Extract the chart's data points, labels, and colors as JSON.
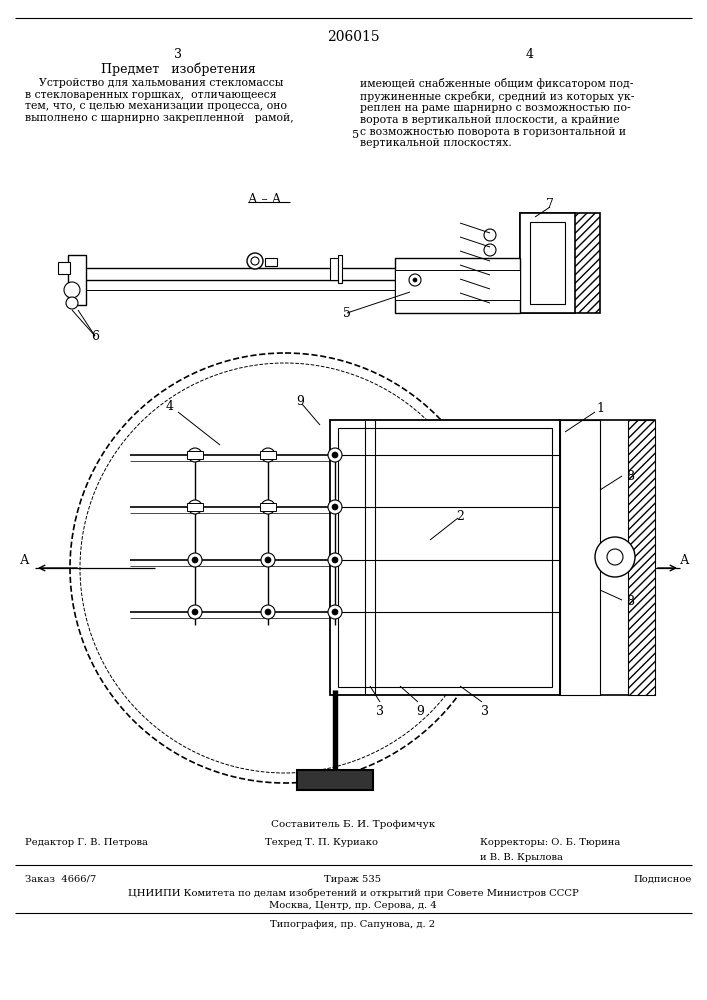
{
  "bg_color": "#ffffff",
  "page_number_center": "206015",
  "col_left_num": "3",
  "col_right_num": "4",
  "section_title": "Предмет   изобретения",
  "left_text": "    Устройство для хальмования стекломассы\nв стекловаренных горшках,  отличающееся\nтем, что, с целью механизации процесса, оно\nвыполнено с шарнирно закрепленной   рамой,",
  "right_text": "имеющей снабженные общим фиксатором под-\nпружиненные скребки, средний из которых ук-\nреплен на раме шарнирно с возможностью по-\nворота в вертикальной плоскости, а крайние\nс возможностью поворота в горизонтальной и\nвертикальной плоскостях.",
  "section_num_5": "5",
  "footer_composer": "Составитель Б. И. Трофимчук",
  "footer_editor": "Редактор Г. В. Петрова",
  "footer_techred": "Техред Т. П. Куриако",
  "footer_correctors_label": "Корректоры: О. Б. Тюрина",
  "footer_correctors2": "и В. В. Крылова",
  "footer_order": "Заказ  4666/7",
  "footer_tirazh": "Тираж 535",
  "footer_podpisnoe": "Подписное",
  "footer_tsniipi": "ЦНИИПИ Комитета по делам изобретений и открытий при Совете Министров СССР",
  "footer_moscow": "Москва, Центр, пр. Серова, д. 4",
  "footer_tipografia": "Типография, пр. Сапунова, д. 2"
}
